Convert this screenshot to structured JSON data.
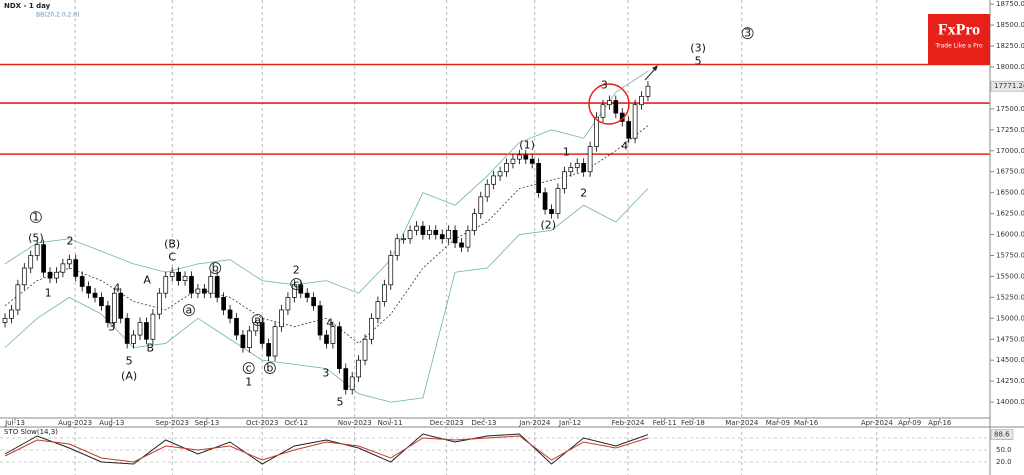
{
  "logo": {
    "name": "FxPro",
    "tagline": "Trade Like a Pro"
  },
  "chart_data": [
    {
      "type": "candlestick",
      "title": "NDX - 1 day",
      "subtitle": "BB(20,2.0,2.0)",
      "open": [
        14950,
        15000,
        15100,
        15400,
        15600,
        15750,
        15880,
        15550,
        15480,
        15550,
        15650,
        15700,
        15500,
        15380,
        15300,
        15250,
        15150,
        14950,
        15300,
        15000,
        14700,
        14800,
        14950,
        14750,
        15050,
        15300,
        15500,
        15550,
        15450,
        15500,
        15300,
        15350,
        15300,
        15500,
        15250,
        15100,
        15000,
        14800,
        14650,
        14850,
        14950,
        14700,
        14550,
        14900,
        15100,
        15250,
        15400,
        15300,
        15250,
        15150,
        14800,
        14700,
        14900,
        14400,
        14150,
        14300,
        14500,
        14750,
        15000,
        15200,
        15400,
        15750,
        15950,
        15950,
        16050,
        16100,
        16000,
        16050,
        16000,
        15950,
        16050,
        15900,
        15850,
        16050,
        16250,
        16450,
        16600,
        16700,
        16750,
        16850,
        16900,
        16950,
        16900,
        16850,
        16500,
        16300,
        16250,
        16550,
        16750,
        16800,
        16850,
        16750,
        17050,
        17400,
        17550,
        17600,
        17450,
        17350,
        17150,
        17550,
        17650
      ],
      "high": [
        15060,
        15160,
        15460,
        15660,
        15810,
        15940,
        15940,
        15610,
        15610,
        15710,
        15760,
        15760,
        15560,
        15440,
        15360,
        15310,
        15210,
        15360,
        15360,
        15060,
        14860,
        15010,
        15010,
        15110,
        15360,
        15560,
        15610,
        15610,
        15560,
        15560,
        15410,
        15410,
        15560,
        15560,
        15310,
        15160,
        15060,
        14860,
        14910,
        15010,
        15010,
        14760,
        14960,
        15160,
        15310,
        15460,
        15460,
        15360,
        15310,
        15210,
        14860,
        14960,
        14960,
        14460,
        14360,
        14560,
        14810,
        15060,
        15260,
        15460,
        15810,
        16010,
        16010,
        16110,
        16160,
        16160,
        16110,
        16110,
        16060,
        16110,
        16110,
        15960,
        16110,
        16310,
        16510,
        16660,
        16760,
        16810,
        16910,
        16960,
        17010,
        17010,
        16960,
        16910,
        16560,
        16360,
        16610,
        16810,
        16860,
        16910,
        16910,
        17110,
        17460,
        17610,
        17660,
        17660,
        17510,
        17410,
        17610,
        17710,
        17830
      ],
      "low": [
        14890,
        14940,
        15040,
        15340,
        15540,
        15690,
        15490,
        15420,
        15420,
        15490,
        15590,
        15440,
        15320,
        15240,
        15190,
        15090,
        14890,
        14890,
        14940,
        14640,
        14640,
        14740,
        14690,
        14690,
        14990,
        15240,
        15440,
        15390,
        15390,
        15240,
        15240,
        15240,
        15240,
        15190,
        15040,
        14940,
        14740,
        14590,
        14590,
        14790,
        14640,
        14490,
        14490,
        14840,
        15040,
        15190,
        15240,
        15190,
        15090,
        14740,
        14640,
        14640,
        14340,
        14090,
        14090,
        14240,
        14440,
        14690,
        14940,
        15140,
        15340,
        15690,
        15890,
        15890,
        15990,
        15940,
        15940,
        15940,
        15890,
        15890,
        15840,
        15790,
        15790,
        15990,
        16190,
        16390,
        16540,
        16640,
        16690,
        16790,
        16840,
        16840,
        16790,
        16440,
        16240,
        16190,
        16190,
        16490,
        16690,
        16740,
        16690,
        16690,
        16990,
        17340,
        17490,
        17390,
        17290,
        17090,
        17090,
        17490,
        17590
      ],
      "close": [
        15000,
        15100,
        15400,
        15600,
        15750,
        15880,
        15550,
        15480,
        15550,
        15650,
        15700,
        15500,
        15380,
        15300,
        15250,
        15150,
        14950,
        15300,
        15000,
        14700,
        14800,
        14950,
        14750,
        15050,
        15300,
        15500,
        15550,
        15450,
        15500,
        15300,
        15350,
        15300,
        15500,
        15250,
        15100,
        15000,
        14800,
        14650,
        14850,
        14950,
        14700,
        14550,
        14900,
        15100,
        15250,
        15400,
        15300,
        15250,
        15150,
        14800,
        14700,
        14900,
        14400,
        14150,
        14300,
        14500,
        14750,
        15000,
        15200,
        15400,
        15750,
        15950,
        15950,
        16050,
        16100,
        16000,
        16050,
        16000,
        15950,
        16050,
        15900,
        15850,
        16050,
        16250,
        16450,
        16600,
        16700,
        16750,
        16850,
        16900,
        16950,
        16900,
        16850,
        16500,
        16300,
        16250,
        16550,
        16750,
        16800,
        16850,
        16750,
        17050,
        17400,
        17550,
        17600,
        17450,
        17350,
        17150,
        17550,
        17650,
        17771.24
      ],
      "bands": {
        "x": [
          0,
          5,
          10,
          15,
          20,
          25,
          30,
          35,
          40,
          45,
          50,
          55,
          60,
          65,
          70,
          75,
          80,
          85,
          90,
          95,
          100
        ],
        "upper": [
          15650,
          15900,
          15950,
          15800,
          15650,
          15550,
          15650,
          15700,
          15450,
          15400,
          15450,
          15300,
          15700,
          16500,
          16350,
          16700,
          17100,
          17250,
          17150,
          17700,
          17950
        ],
        "middle": [
          15150,
          15450,
          15600,
          15450,
          15200,
          15100,
          15350,
          15250,
          15000,
          14900,
          15000,
          14700,
          15050,
          15600,
          15950,
          16150,
          16550,
          16650,
          16750,
          17000,
          17300
        ],
        "lower": [
          14650,
          15000,
          15250,
          15050,
          14650,
          14700,
          15000,
          14750,
          14500,
          14450,
          14400,
          14100,
          14000,
          14050,
          15550,
          15600,
          16000,
          16050,
          16350,
          16150,
          16550
        ],
        "band_color": "#6fb3ad",
        "middle_color": "#333333"
      },
      "levels": [
        18030,
        17570,
        16960
      ],
      "level_color": "#e8201a",
      "annotations": [
        {
          "text": "1",
          "x": 4.8,
          "y": 16208,
          "circled": true
        },
        {
          "text": "(5)",
          "x": 4.8,
          "y": 15960,
          "circled": false
        },
        {
          "text": "2",
          "x": 10.1,
          "y": 15922,
          "circled": false
        },
        {
          "text": "1",
          "x": 6.7,
          "y": 15301,
          "circled": false
        },
        {
          "text": "4",
          "x": 17.4,
          "y": 15360,
          "circled": false
        },
        {
          "text": "3",
          "x": 16.6,
          "y": 14896,
          "circled": false
        },
        {
          "text": "5",
          "x": 19.3,
          "y": 14490,
          "circled": false
        },
        {
          "text": "(A)",
          "x": 19.3,
          "y": 14311,
          "circled": false
        },
        {
          "text": "A",
          "x": 22.1,
          "y": 15456,
          "circled": false
        },
        {
          "text": "B",
          "x": 22.6,
          "y": 14645,
          "circled": false
        },
        {
          "text": "(B)",
          "x": 26,
          "y": 15886,
          "circled": false
        },
        {
          "text": "C",
          "x": 26,
          "y": 15731,
          "circled": false
        },
        {
          "text": "b",
          "x": 32.7,
          "y": 15600,
          "circled": true
        },
        {
          "text": "a",
          "x": 28.6,
          "y": 15098,
          "circled": true
        },
        {
          "text": "2",
          "x": 45.3,
          "y": 15576,
          "circled": false
        },
        {
          "text": "c",
          "x": 45.3,
          "y": 15409,
          "circled": true
        },
        {
          "text": "a",
          "x": 39.3,
          "y": 14979,
          "circled": true
        },
        {
          "text": "c",
          "x": 37.9,
          "y": 14406,
          "circled": true
        },
        {
          "text": "1",
          "x": 37.9,
          "y": 14239,
          "circled": false
        },
        {
          "text": "b",
          "x": 41.2,
          "y": 14406,
          "circled": true
        },
        {
          "text": "4",
          "x": 50.5,
          "y": 14943,
          "circled": false
        },
        {
          "text": "3",
          "x": 49.9,
          "y": 14347,
          "circled": false
        },
        {
          "text": "5",
          "x": 52.1,
          "y": 14000,
          "circled": false
        },
        {
          "text": "(1)",
          "x": 81.2,
          "y": 17067,
          "circled": false
        },
        {
          "text": "(2)",
          "x": 84.5,
          "y": 16113,
          "circled": false
        },
        {
          "text": "1",
          "x": 87.3,
          "y": 16984,
          "circled": false
        },
        {
          "text": "2",
          "x": 90,
          "y": 16495,
          "circled": false
        },
        {
          "text": "3",
          "x": 93.2,
          "y": 17783,
          "circled": false
        },
        {
          "text": "4",
          "x": 96.4,
          "y": 17055,
          "circled": false
        },
        {
          "text": "(3)",
          "x": 107.8,
          "y": 18225,
          "circled": false
        },
        {
          "text": "5",
          "x": 107.8,
          "y": 18070,
          "circled": false
        },
        {
          "text": "3",
          "x": 115.5,
          "y": 18404,
          "circled": true
        }
      ],
      "xlim": [
        -0.78,
        153.2
      ],
      "ylim": [
        13810,
        18800
      ],
      "xticks_major": [
        {
          "value": 10.9,
          "label": "Aug-2023"
        },
        {
          "value": 26,
          "label": "Sep-2023"
        },
        {
          "value": 40,
          "label": "Oct-2023"
        },
        {
          "value": 54.4,
          "label": "Nov-2023"
        },
        {
          "value": 68.7,
          "label": "Dec-2023"
        },
        {
          "value": 82.4,
          "label": "Jan-2024"
        },
        {
          "value": 96.9,
          "label": "Feb-2024"
        },
        {
          "value": 114.6,
          "label": "Mar-2024"
        },
        {
          "value": 135.6,
          "label": "Apr-2024"
        }
      ],
      "xticks_minor": [
        {
          "value": 1.56,
          "label": "Jul-13"
        },
        {
          "value": 16.6,
          "label": "Aug-13"
        },
        {
          "value": 31.4,
          "label": "Sep-13"
        },
        {
          "value": 45.3,
          "label": "Oct-12"
        },
        {
          "value": 59.9,
          "label": "Nov-11"
        },
        {
          "value": 74.5,
          "label": "Dec-13"
        },
        {
          "value": 87.9,
          "label": "Jan-12"
        },
        {
          "value": 102.6,
          "label": "Feb-11"
        },
        {
          "value": 107,
          "label": "Feb-18"
        },
        {
          "value": 120.2,
          "label": "Mar-09"
        },
        {
          "value": 124.6,
          "label": "Mar-16"
        },
        {
          "value": 140.7,
          "label": "Apr-09"
        },
        {
          "value": 145.4,
          "label": "Apr-16"
        }
      ],
      "yticks": [
        {
          "value": 14000,
          "label": "14000.00"
        },
        {
          "value": 14250,
          "label": "14250.00"
        },
        {
          "value": 14500,
          "label": "14500.00"
        },
        {
          "value": 14750,
          "label": "14750.00"
        },
        {
          "value": 15000,
          "label": "15000.00"
        },
        {
          "value": 15250,
          "label": "15250.00"
        },
        {
          "value": 15500,
          "label": "15500.00"
        },
        {
          "value": 15750,
          "label": "15750.00"
        },
        {
          "value": 16000,
          "label": "16000.00"
        },
        {
          "value": 16250,
          "label": "16250.00"
        },
        {
          "value": 16500,
          "label": "16500.00"
        },
        {
          "value": 16750,
          "label": "16750.00"
        },
        {
          "value": 17000,
          "label": "17000.00"
        },
        {
          "value": 17250,
          "label": "17250.00"
        },
        {
          "value": 17500,
          "label": "17500.00"
        },
        {
          "value": 17750,
          "label": "17750.00"
        },
        {
          "value": 18000,
          "label": "18000.00"
        },
        {
          "value": 18250,
          "label": "18250.00"
        },
        {
          "value": 18500,
          "label": "18500.00"
        },
        {
          "value": 18750,
          "label": "18750.00"
        }
      ]
    },
    {
      "type": "line",
      "title": "STO Slow(14,3)",
      "x": [
        0,
        5,
        10,
        15,
        20,
        25,
        30,
        35,
        40,
        45,
        50,
        55,
        60,
        65,
        70,
        75,
        80,
        85,
        90,
        95,
        100
      ],
      "series": [
        {
          "name": "%K",
          "color": "#222222",
          "values": [
            40,
            85,
            55,
            20,
            15,
            75,
            40,
            70,
            15,
            60,
            75,
            55,
            20,
            90,
            70,
            85,
            90,
            15,
            80,
            60,
            88.6
          ]
        },
        {
          "name": "%D",
          "color": "#c0392b",
          "values": [
            35,
            75,
            65,
            30,
            20,
            60,
            50,
            60,
            25,
            50,
            70,
            60,
            30,
            80,
            75,
            80,
            85,
            25,
            70,
            55,
            80
          ]
        }
      ],
      "xlim": [
        -0.78,
        153.2
      ],
      "ylim": [
        0,
        100
      ],
      "yticks": [
        {
          "value": 80,
          "label": "80.0"
        },
        {
          "value": 50,
          "label": "50.0"
        },
        {
          "value": 20,
          "label": "20.0"
        }
      ]
    }
  ]
}
